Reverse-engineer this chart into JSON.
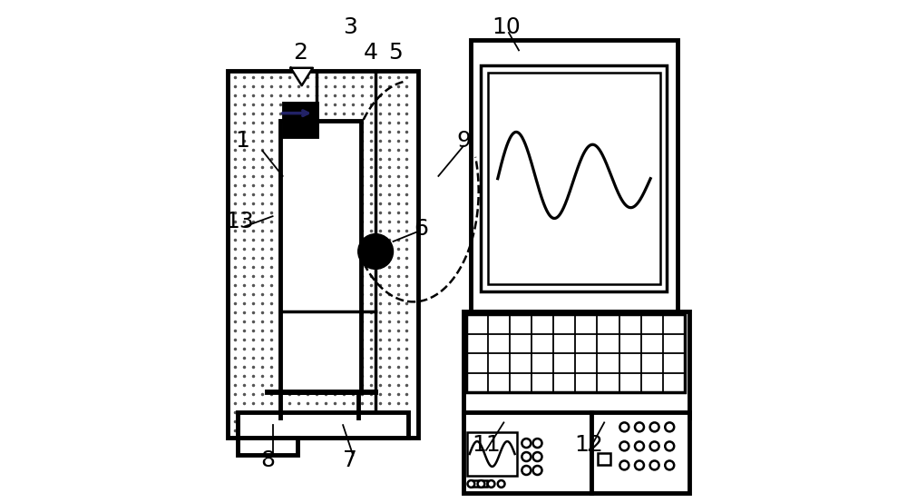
{
  "bg_color": "#ffffff",
  "line_color": "#000000",
  "dot_color": "#555555",
  "label_color": "#000000",
  "label_fontsize": 18,
  "lw_thick": 3.5,
  "lw_med": 2.5,
  "lw_thin": 1.8
}
